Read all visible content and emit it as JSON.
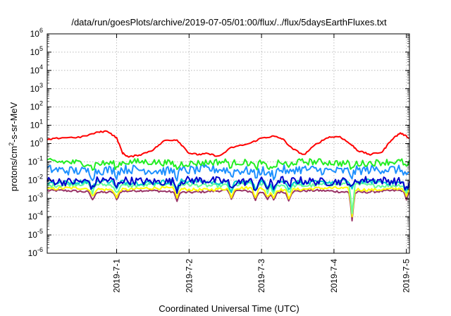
{
  "chart_data": {
    "type": "line",
    "title": "/data/run/goesPlots/archive/2019-07-05/01:00/flux/../flux/5daysEarthFluxes.txt",
    "xlabel": "Coordinated Universal Time (UTC)",
    "ylabel": {
      "base": "protons/cm",
      "sup": "2",
      "rest": "-s-sr-MeV"
    },
    "x_range": [
      "2019-06-30 01:00",
      "2019-07-05 01:00"
    ],
    "x_ticks": [
      "2019-7-1",
      "2019-7-2",
      "2019-7-3",
      "2019-7-4",
      "2019-7-5"
    ],
    "y_scale": "log",
    "ylim": [
      1e-06,
      1000000.0
    ],
    "y_ticks": [
      {
        "base": "10",
        "exp": "-6",
        "value": 1e-06
      },
      {
        "base": "10",
        "exp": "-5",
        "value": 1e-05
      },
      {
        "base": "10",
        "exp": "-4",
        "value": 0.0001
      },
      {
        "base": "10",
        "exp": "-3",
        "value": 0.001
      },
      {
        "base": "10",
        "exp": "-2",
        "value": 0.01
      },
      {
        "base": "10",
        "exp": "-1",
        "value": 0.1
      },
      {
        "base": "10",
        "exp": "0",
        "value": 1
      },
      {
        "base": "10",
        "exp": "1",
        "value": 10
      },
      {
        "base": "10",
        "exp": "2",
        "value": 100
      },
      {
        "base": "10",
        "exp": "3",
        "value": 1000
      },
      {
        "base": "10",
        "exp": "4",
        "value": 10000
      },
      {
        "base": "10",
        "exp": "5",
        "value": 100000
      },
      {
        "base": "10",
        "exp": "6",
        "value": 1000000
      }
    ],
    "grid": true,
    "series": [
      {
        "color": "#ff0000",
        "x": [
          "2019-06-30 01:00",
          "2019-06-30 06:00",
          "2019-06-30 12:00",
          "2019-06-30 18:00",
          "2019-06-30 21:00",
          "2019-07-01 00:00",
          "2019-07-01 02:00",
          "2019-07-01 04:00",
          "2019-07-01 08:00",
          "2019-07-01 12:00",
          "2019-07-01 16:00",
          "2019-07-01 20:00",
          "2019-07-02 00:00",
          "2019-07-02 03:00",
          "2019-07-02 06:00",
          "2019-07-02 10:00",
          "2019-07-02 14:00",
          "2019-07-02 20:00",
          "2019-07-03 00:00",
          "2019-07-03 04:00",
          "2019-07-03 07:00",
          "2019-07-03 10:00",
          "2019-07-03 14:00",
          "2019-07-03 18:00",
          "2019-07-03 22:00",
          "2019-07-04 02:00",
          "2019-07-04 06:00",
          "2019-07-04 08:00",
          "2019-07-04 12:00",
          "2019-07-04 16:00",
          "2019-07-04 19:00",
          "2019-07-04 22:00",
          "2019-07-05 01:00"
        ],
        "y": [
          1.6,
          2.1,
          2.2,
          4.2,
          4.8,
          2.0,
          0.3,
          0.18,
          0.25,
          0.45,
          1.5,
          1.6,
          0.3,
          0.25,
          0.28,
          0.2,
          0.6,
          1.0,
          2.0,
          2.5,
          1.8,
          0.55,
          0.24,
          0.9,
          2.2,
          2.4,
          0.8,
          0.4,
          0.25,
          0.35,
          1.6,
          3.8,
          2.0
        ]
      },
      {
        "color": "#22ee22",
        "base": 0.09,
        "jitter": 0.18
      },
      {
        "color": "#1e90ff",
        "base": 0.035,
        "jitter": 0.25
      },
      {
        "color": "#0000cc",
        "base": 0.009,
        "jitter": 0.22
      },
      {
        "color": "#00cccc",
        "base": 0.008,
        "jitter": 0.12
      },
      {
        "color": "#66ff99",
        "base": 0.0055,
        "jitter": 0.1
      },
      {
        "color": "#ffff00",
        "base": 0.0033,
        "jitter": 0.08
      },
      {
        "color": "#993366",
        "base": 0.0024,
        "jitter": 0.06
      }
    ],
    "dip_times": [
      "2019-06-30 16:00",
      "2019-07-01 00:00",
      "2019-07-01 20:00",
      "2019-07-02 14:00",
      "2019-07-02 22:00",
      "2019-07-03 02:00",
      "2019-07-03 04:00",
      "2019-07-03 09:00",
      "2019-07-04 06:00",
      "2019-07-05 00:00"
    ]
  }
}
